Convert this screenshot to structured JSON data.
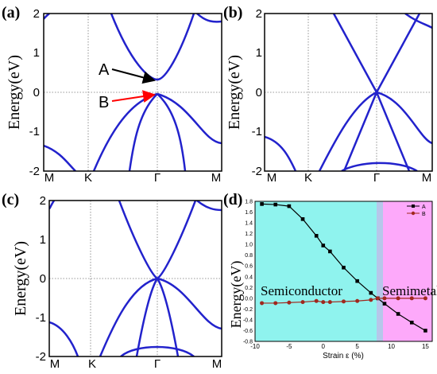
{
  "chart_data": [
    {
      "panel": "(a)",
      "type": "line",
      "ylabel": "Energy(eV)",
      "x_ticks": [
        "M",
        "K",
        "Γ",
        "M"
      ],
      "y_ticks": [
        "-2",
        "-1",
        "0",
        "1",
        "2"
      ],
      "ylim": [
        -2,
        2
      ],
      "annotations": [
        {
          "label": "A",
          "arrow_color": "#000000",
          "energy": 0.3
        },
        {
          "label": "B",
          "arrow_color": "#ff0000",
          "energy": -0.02
        }
      ]
    },
    {
      "panel": "(b)",
      "type": "line",
      "ylabel": "Energy(eV)",
      "x_ticks": [
        "M",
        "K",
        "Γ",
        "M"
      ],
      "y_ticks": [
        "-2",
        "-1",
        "0",
        "1",
        "2"
      ],
      "ylim": [
        -2,
        2
      ]
    },
    {
      "panel": "(c)",
      "type": "line",
      "ylabel": "Energy(eV)",
      "x_ticks": [
        "M",
        "K",
        "Γ",
        "M"
      ],
      "y_ticks": [
        "-2",
        "-1",
        "0",
        "1",
        "2"
      ],
      "ylim": [
        -2,
        2
      ]
    },
    {
      "panel": "(d)",
      "type": "line",
      "xlabel": "Strain ε (%)",
      "ylabel": "Energy(eV)",
      "x_ticks": [
        "-10",
        "-5",
        "0",
        "5",
        "10",
        "15"
      ],
      "y_ticks": [
        "1.8",
        "1.6",
        "1.4",
        "1.2",
        "1.0",
        "0.8",
        "0.6",
        "0.4",
        "0.2",
        "0.0",
        "-0.2",
        "-0.4",
        "-0.6",
        "-0.8"
      ],
      "xlim": [
        -10,
        16
      ],
      "ylim": [
        -0.8,
        1.8
      ],
      "legend_position": "top-right",
      "regions": [
        {
          "label": "Semiconductor",
          "color": "#8ff3ee"
        },
        {
          "label": "Semimetal",
          "color": "#fda9fa"
        }
      ],
      "series": [
        {
          "name": "A",
          "color": "#000000",
          "marker": "square",
          "x": [
            -9,
            -7,
            -5,
            -3,
            -1,
            0,
            1,
            3,
            5,
            7,
            8,
            9,
            11,
            13,
            15
          ],
          "y": [
            1.75,
            1.74,
            1.71,
            1.47,
            1.16,
            0.98,
            0.87,
            0.57,
            0.32,
            0.1,
            0.0,
            -0.1,
            -0.29,
            -0.45,
            -0.6
          ]
        },
        {
          "name": "B",
          "color": "#a0281e",
          "marker": "circle",
          "x": [
            -9,
            -7,
            -5,
            -3,
            -1,
            0,
            1,
            3,
            5,
            7,
            8,
            9,
            11,
            13,
            15
          ],
          "y": [
            -0.09,
            -0.09,
            -0.08,
            -0.07,
            -0.05,
            -0.07,
            -0.07,
            -0.06,
            -0.05,
            -0.03,
            0.0,
            0.0,
            0.0,
            0.0,
            0.0
          ]
        }
      ]
    }
  ]
}
